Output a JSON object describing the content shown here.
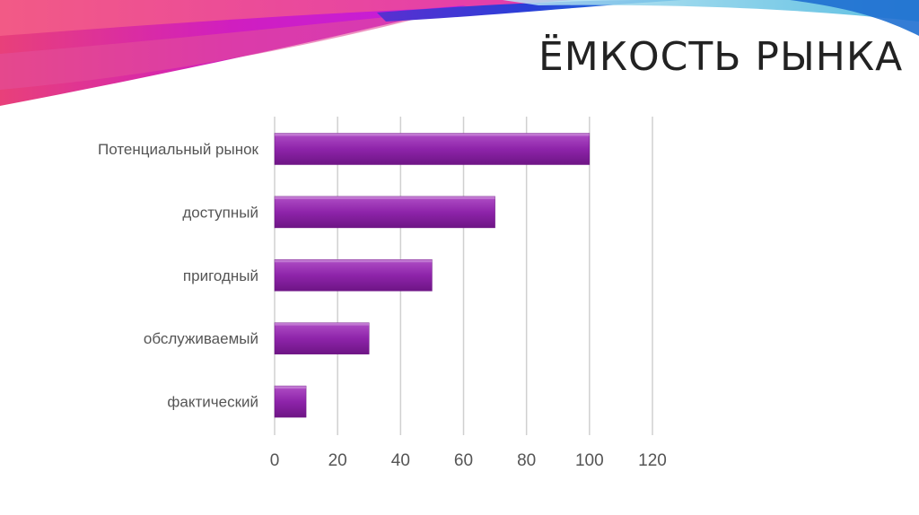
{
  "slide": {
    "title": "ЁМКОСТЬ РЫНКА"
  },
  "colors": {
    "bar": "#8e24aa",
    "bar_top": "#b04fc6",
    "bar_bottom": "#6e1585",
    "gridline": "#d0d0d0"
  },
  "chart_data": {
    "type": "bar",
    "orientation": "horizontal",
    "categories": [
      "Потенциальный рынок",
      "доступный",
      "пригодный",
      "обслуживаемый",
      "фактический"
    ],
    "values": [
      100,
      70,
      50,
      30,
      10
    ],
    "x_ticks": [
      "0",
      "20",
      "40",
      "60",
      "80",
      "100",
      "120"
    ],
    "xlim": [
      0,
      120
    ],
    "grid": true,
    "legend": "none",
    "title": "",
    "xlabel": "",
    "ylabel": ""
  }
}
